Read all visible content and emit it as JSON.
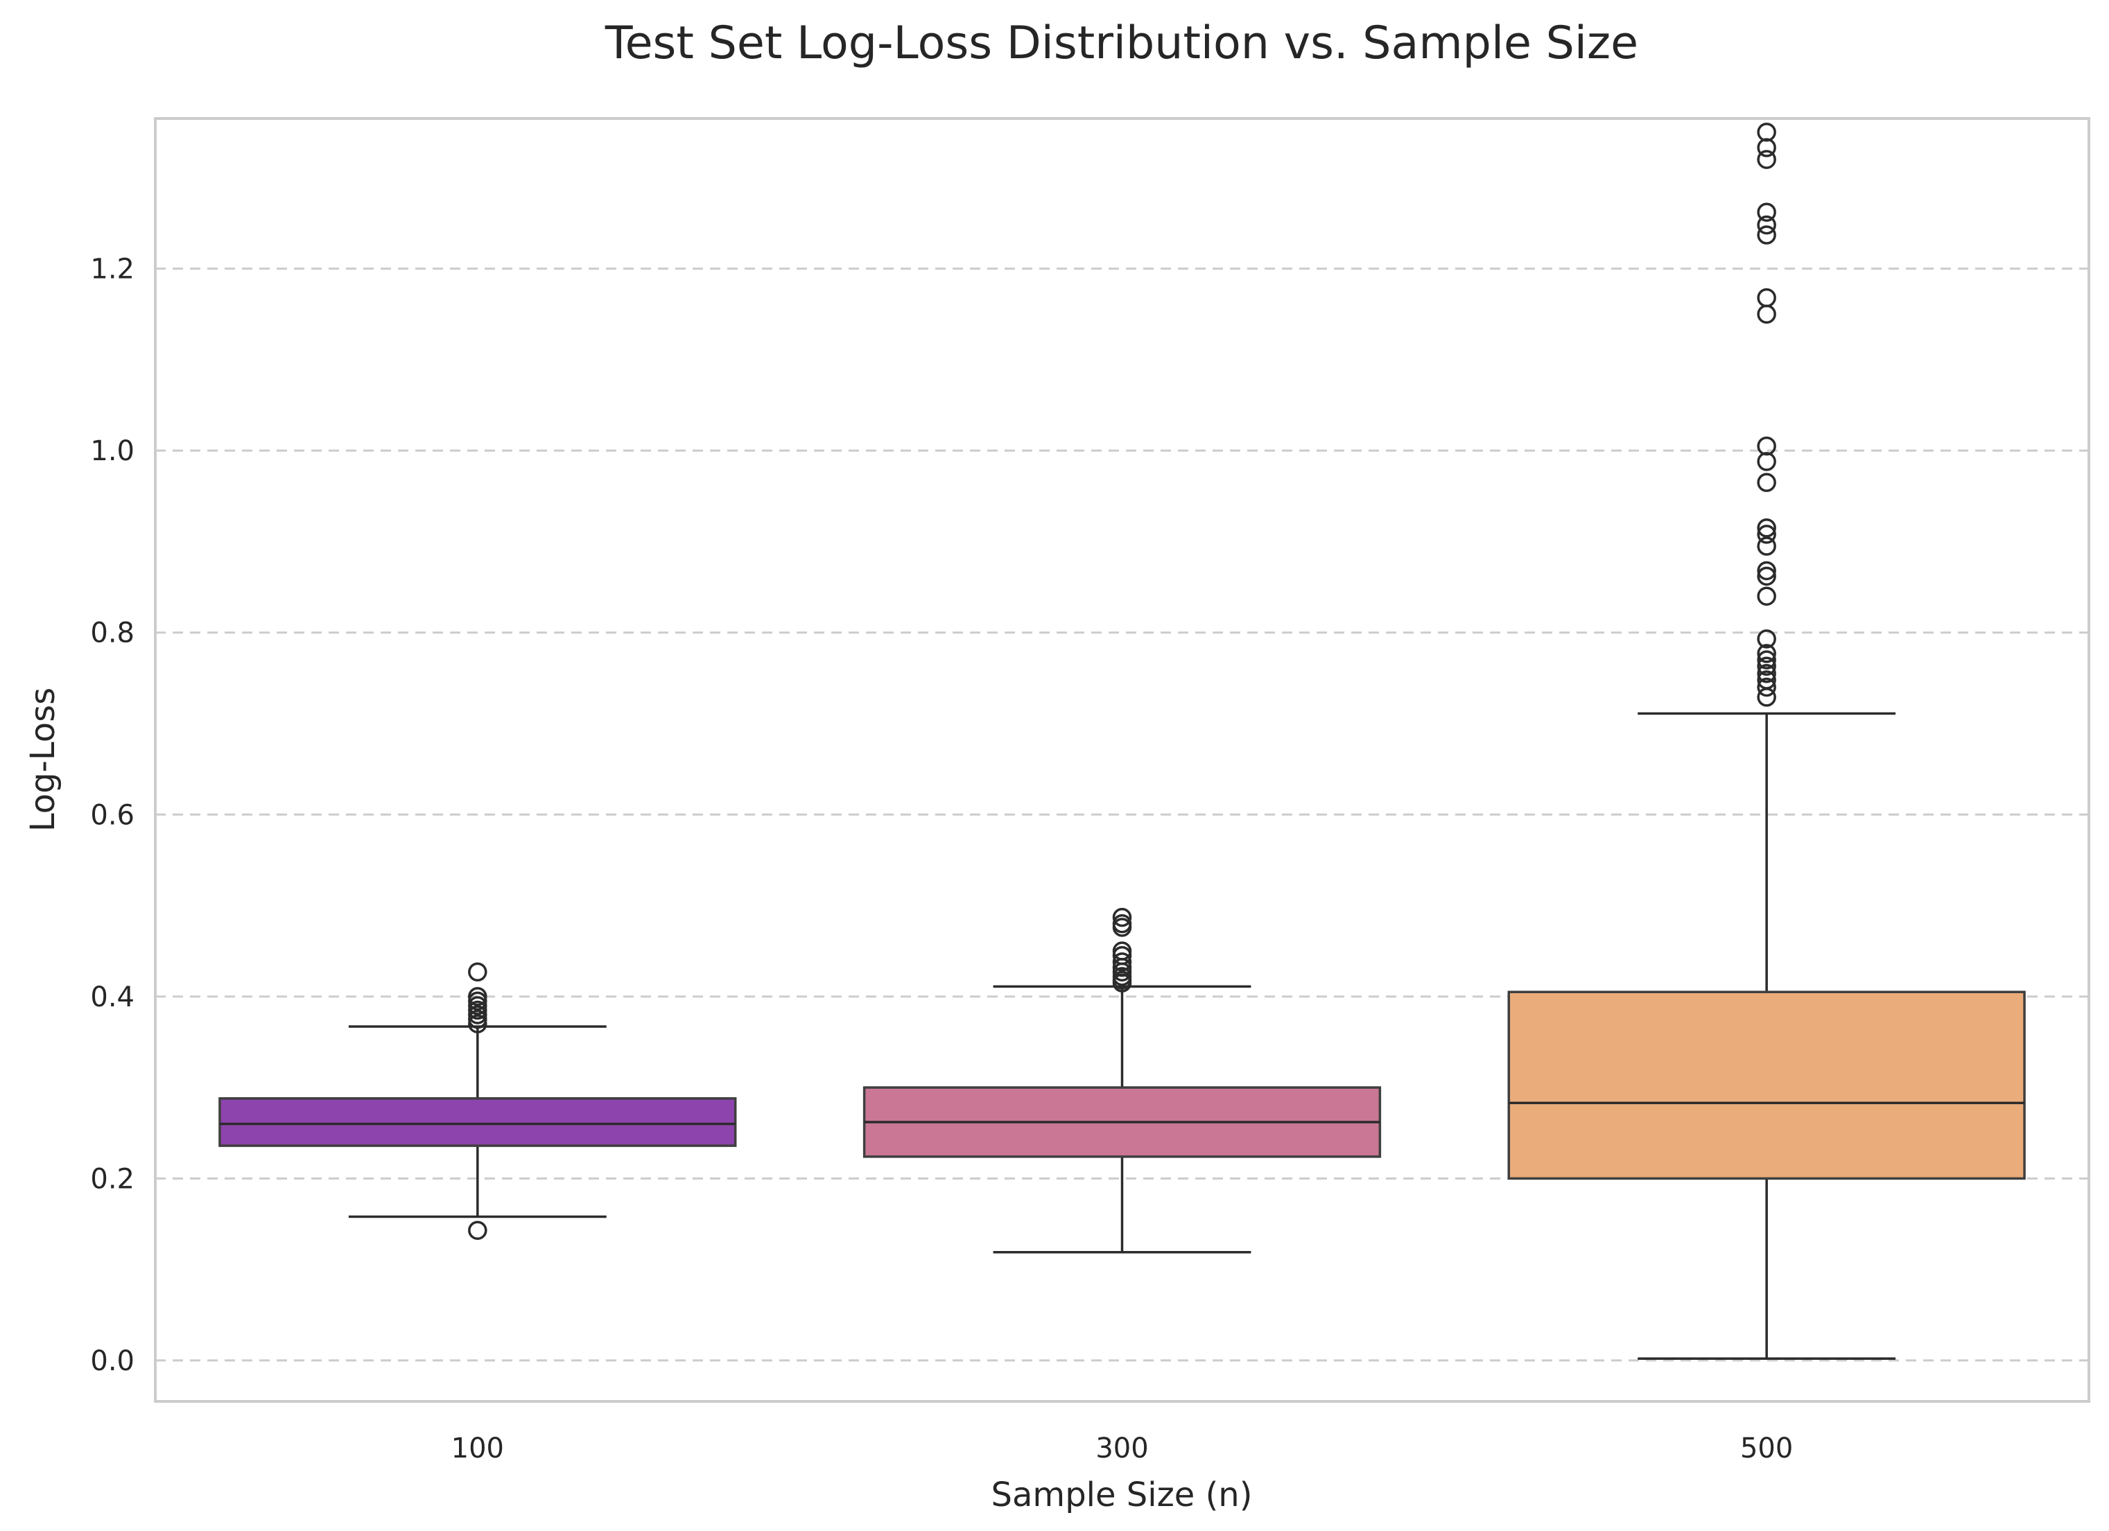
{
  "chart_data": {
    "type": "box",
    "title": "Test Set Log-Loss Distribution vs. Sample Size",
    "xlabel": "Sample Size (n)",
    "ylabel": "Log-Loss",
    "ylim": [
      -0.045,
      1.365
    ],
    "yticks": [
      0.0,
      0.2,
      0.4,
      0.6,
      0.8,
      1.0,
      1.2
    ],
    "ytick_labels": [
      "0.0",
      "0.2",
      "0.4",
      "0.6",
      "0.8",
      "1.0",
      "1.2"
    ],
    "grid": "horizontal dashed",
    "categories": [
      "100",
      "300",
      "500"
    ],
    "boxes": [
      {
        "category": "100",
        "color": "#8e44ad",
        "whisker_low": 0.158,
        "q1": 0.236,
        "median": 0.26,
        "q3": 0.288,
        "whisker_high": 0.367,
        "fliers": [
          0.143,
          0.37,
          0.375,
          0.38,
          0.385,
          0.39,
          0.395,
          0.4,
          0.427
        ]
      },
      {
        "category": "300",
        "color": "#c97795",
        "whisker_low": 0.119,
        "q1": 0.224,
        "median": 0.262,
        "q3": 0.3,
        "whisker_high": 0.411,
        "fliers": [
          0.415,
          0.418,
          0.422,
          0.427,
          0.432,
          0.438,
          0.445,
          0.45,
          0.476,
          0.48,
          0.487
        ]
      },
      {
        "category": "500",
        "color": "#eaac7a",
        "whisker_low": 0.002,
        "q1": 0.2,
        "median": 0.283,
        "q3": 0.405,
        "whisker_high": 0.711,
        "fliers": [
          0.729,
          0.74,
          0.748,
          0.755,
          0.763,
          0.77,
          0.777,
          0.793,
          0.84,
          0.862,
          0.868,
          0.895,
          0.908,
          0.915,
          0.965,
          0.988,
          1.005,
          1.15,
          1.168,
          1.237,
          1.248,
          1.262,
          1.32,
          1.333,
          1.35
        ]
      }
    ]
  }
}
